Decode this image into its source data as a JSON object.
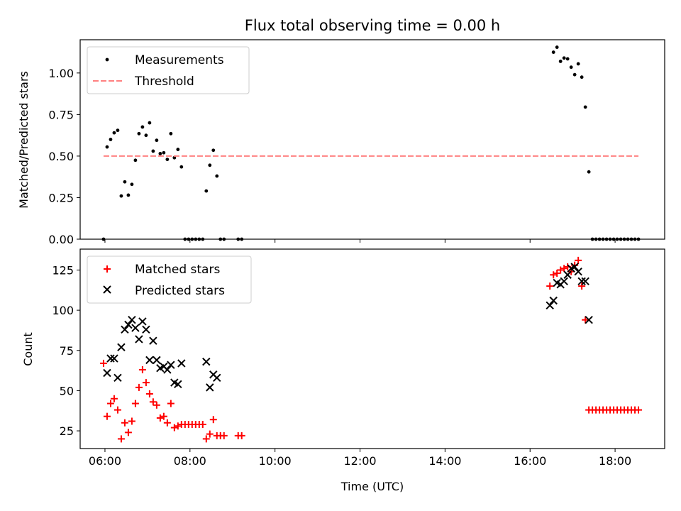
{
  "chart_data": [
    {
      "type": "scatter",
      "title": "Flux total observing time = 0.00 h",
      "xlabel": "",
      "ylabel": "Matched/Predicted stars",
      "xlim": [
        "05:25",
        "19:10"
      ],
      "ylim": [
        0,
        1.2
      ],
      "yticks": [
        0.0,
        0.25,
        0.5,
        0.75,
        1.0
      ],
      "ytick_labels": [
        "0.00",
        "0.25",
        "0.50",
        "0.75",
        "1.00"
      ],
      "xticks": [
        "06:00",
        "08:00",
        "10:00",
        "12:00",
        "14:00",
        "16:00",
        "18:00"
      ],
      "show_xtick_labels": false,
      "grid": false,
      "legend_position": "upper-left",
      "legend": [
        "Measurements",
        "Threshold"
      ],
      "series": [
        {
          "name": "Measurements",
          "marker": "dot",
          "color": "#000000",
          "points": [
            [
              "05:58",
              0.0
            ],
            [
              "06:03",
              0.555
            ],
            [
              "06:08",
              0.6
            ],
            [
              "06:13",
              0.64
            ],
            [
              "06:18",
              0.655
            ],
            [
              "06:23",
              0.26
            ],
            [
              "06:28",
              0.345
            ],
            [
              "06:33",
              0.265
            ],
            [
              "06:38",
              0.33
            ],
            [
              "06:43",
              0.475
            ],
            [
              "06:48",
              0.635
            ],
            [
              "06:53",
              0.675
            ],
            [
              "06:58",
              0.625
            ],
            [
              "07:03",
              0.7
            ],
            [
              "07:08",
              0.53
            ],
            [
              "07:13",
              0.595
            ],
            [
              "07:18",
              0.515
            ],
            [
              "07:23",
              0.52
            ],
            [
              "07:28",
              0.48
            ],
            [
              "07:33",
              0.635
            ],
            [
              "07:38",
              0.49
            ],
            [
              "07:43",
              0.54
            ],
            [
              "07:48",
              0.435
            ],
            [
              "07:53",
              0.0
            ],
            [
              "07:58",
              0.0
            ],
            [
              "08:03",
              0.0
            ],
            [
              "08:08",
              0.0
            ],
            [
              "08:13",
              0.0
            ],
            [
              "08:18",
              0.0
            ],
            [
              "08:23",
              0.29
            ],
            [
              "08:28",
              0.445
            ],
            [
              "08:33",
              0.535
            ],
            [
              "08:38",
              0.38
            ],
            [
              "08:43",
              0.0
            ],
            [
              "08:48",
              0.0
            ],
            [
              "09:08",
              0.0
            ],
            [
              "09:13",
              0.0
            ],
            [
              "16:33",
              1.125
            ],
            [
              "16:38",
              1.155
            ],
            [
              "16:43",
              1.07
            ],
            [
              "16:48",
              1.09
            ],
            [
              "16:53",
              1.085
            ],
            [
              "16:58",
              1.035
            ],
            [
              "17:03",
              0.99
            ],
            [
              "17:08",
              1.055
            ],
            [
              "17:13",
              0.975
            ],
            [
              "17:18",
              0.795
            ],
            [
              "17:23",
              0.405
            ],
            [
              "17:28",
              0.0
            ],
            [
              "17:33",
              0.0
            ],
            [
              "17:38",
              0.0
            ],
            [
              "17:43",
              0.0
            ],
            [
              "17:48",
              0.0
            ],
            [
              "17:53",
              0.0
            ],
            [
              "17:58",
              0.0
            ],
            [
              "18:03",
              0.0
            ],
            [
              "18:08",
              0.0
            ],
            [
              "18:13",
              0.0
            ],
            [
              "18:18",
              0.0
            ],
            [
              "18:23",
              0.0
            ],
            [
              "18:28",
              0.0
            ],
            [
              "18:33",
              0.0
            ]
          ]
        },
        {
          "name": "Threshold",
          "style": "dashed-line",
          "color": "#ff8080",
          "points": [
            [
              "05:58",
              0.5
            ],
            [
              "18:33",
              0.5
            ]
          ]
        }
      ]
    },
    {
      "type": "scatter",
      "title": "",
      "xlabel": "Time (UTC)",
      "ylabel": "Count",
      "xlim": [
        "05:25",
        "19:10"
      ],
      "ylim": [
        14,
        138
      ],
      "yticks": [
        25,
        50,
        75,
        100,
        125
      ],
      "ytick_labels": [
        "25",
        "50",
        "75",
        "100",
        "125"
      ],
      "xticks": [
        "06:00",
        "08:00",
        "10:00",
        "12:00",
        "14:00",
        "16:00",
        "18:00"
      ],
      "xtick_labels": [
        "06:00",
        "08:00",
        "10:00",
        "12:00",
        "14:00",
        "16:00",
        "18:00"
      ],
      "grid": false,
      "legend_position": "upper-left",
      "legend": [
        "Matched stars",
        "Predicted stars"
      ],
      "series": [
        {
          "name": "Matched stars",
          "marker": "plus",
          "color": "#ff0000",
          "points": [
            [
              "05:58",
              67
            ],
            [
              "06:03",
              34
            ],
            [
              "06:08",
              42
            ],
            [
              "06:13",
              45
            ],
            [
              "06:18",
              38
            ],
            [
              "06:23",
              20
            ],
            [
              "06:28",
              30
            ],
            [
              "06:33",
              24
            ],
            [
              "06:38",
              31
            ],
            [
              "06:43",
              42
            ],
            [
              "06:48",
              52
            ],
            [
              "06:53",
              63
            ],
            [
              "06:58",
              55
            ],
            [
              "07:03",
              48
            ],
            [
              "07:08",
              43
            ],
            [
              "07:13",
              41
            ],
            [
              "07:18",
              33
            ],
            [
              "07:23",
              34
            ],
            [
              "07:28",
              30
            ],
            [
              "07:33",
              42
            ],
            [
              "07:38",
              27
            ],
            [
              "07:43",
              28
            ],
            [
              "07:48",
              29
            ],
            [
              "07:53",
              29
            ],
            [
              "07:58",
              29
            ],
            [
              "08:03",
              29
            ],
            [
              "08:08",
              29
            ],
            [
              "08:13",
              29
            ],
            [
              "08:18",
              29
            ],
            [
              "08:23",
              20
            ],
            [
              "08:28",
              23
            ],
            [
              "08:33",
              32
            ],
            [
              "08:38",
              22
            ],
            [
              "08:43",
              22
            ],
            [
              "08:48",
              22
            ],
            [
              "09:08",
              22
            ],
            [
              "09:13",
              22
            ],
            [
              "16:28",
              115
            ],
            [
              "16:33",
              122
            ],
            [
              "16:38",
              123
            ],
            [
              "16:43",
              125
            ],
            [
              "16:48",
              126
            ],
            [
              "16:53",
              127
            ],
            [
              "16:58",
              124
            ],
            [
              "17:03",
              128
            ],
            [
              "17:08",
              131
            ],
            [
              "17:13",
              115
            ],
            [
              "17:18",
              94
            ],
            [
              "17:23",
              38
            ],
            [
              "17:28",
              38
            ],
            [
              "17:33",
              38
            ],
            [
              "17:38",
              38
            ],
            [
              "17:43",
              38
            ],
            [
              "17:48",
              38
            ],
            [
              "17:53",
              38
            ],
            [
              "17:58",
              38
            ],
            [
              "18:03",
              38
            ],
            [
              "18:08",
              38
            ],
            [
              "18:13",
              38
            ],
            [
              "18:18",
              38
            ],
            [
              "18:23",
              38
            ],
            [
              "18:28",
              38
            ],
            [
              "18:33",
              38
            ]
          ]
        },
        {
          "name": "Predicted stars",
          "marker": "x",
          "color": "#000000",
          "points": [
            [
              "06:03",
              61
            ],
            [
              "06:08",
              70
            ],
            [
              "06:13",
              70
            ],
            [
              "06:18",
              58
            ],
            [
              "06:23",
              77
            ],
            [
              "06:28",
              88
            ],
            [
              "06:33",
              91
            ],
            [
              "06:38",
              94
            ],
            [
              "06:43",
              89
            ],
            [
              "06:48",
              82
            ],
            [
              "06:53",
              93
            ],
            [
              "06:58",
              88
            ],
            [
              "07:03",
              69
            ],
            [
              "07:08",
              81
            ],
            [
              "07:13",
              69
            ],
            [
              "07:18",
              64
            ],
            [
              "07:23",
              65
            ],
            [
              "07:28",
              63
            ],
            [
              "07:33",
              66
            ],
            [
              "07:38",
              55
            ],
            [
              "07:43",
              54
            ],
            [
              "07:48",
              67
            ],
            [
              "08:23",
              68
            ],
            [
              "08:28",
              52
            ],
            [
              "08:33",
              60
            ],
            [
              "08:38",
              58
            ],
            [
              "16:28",
              103
            ],
            [
              "16:33",
              106
            ],
            [
              "16:38",
              117
            ],
            [
              "16:43",
              116
            ],
            [
              "16:48",
              118
            ],
            [
              "16:53",
              122
            ],
            [
              "16:58",
              126
            ],
            [
              "17:03",
              127
            ],
            [
              "17:08",
              124
            ],
            [
              "17:13",
              118
            ],
            [
              "17:18",
              118
            ],
            [
              "17:23",
              94
            ]
          ]
        }
      ]
    }
  ]
}
